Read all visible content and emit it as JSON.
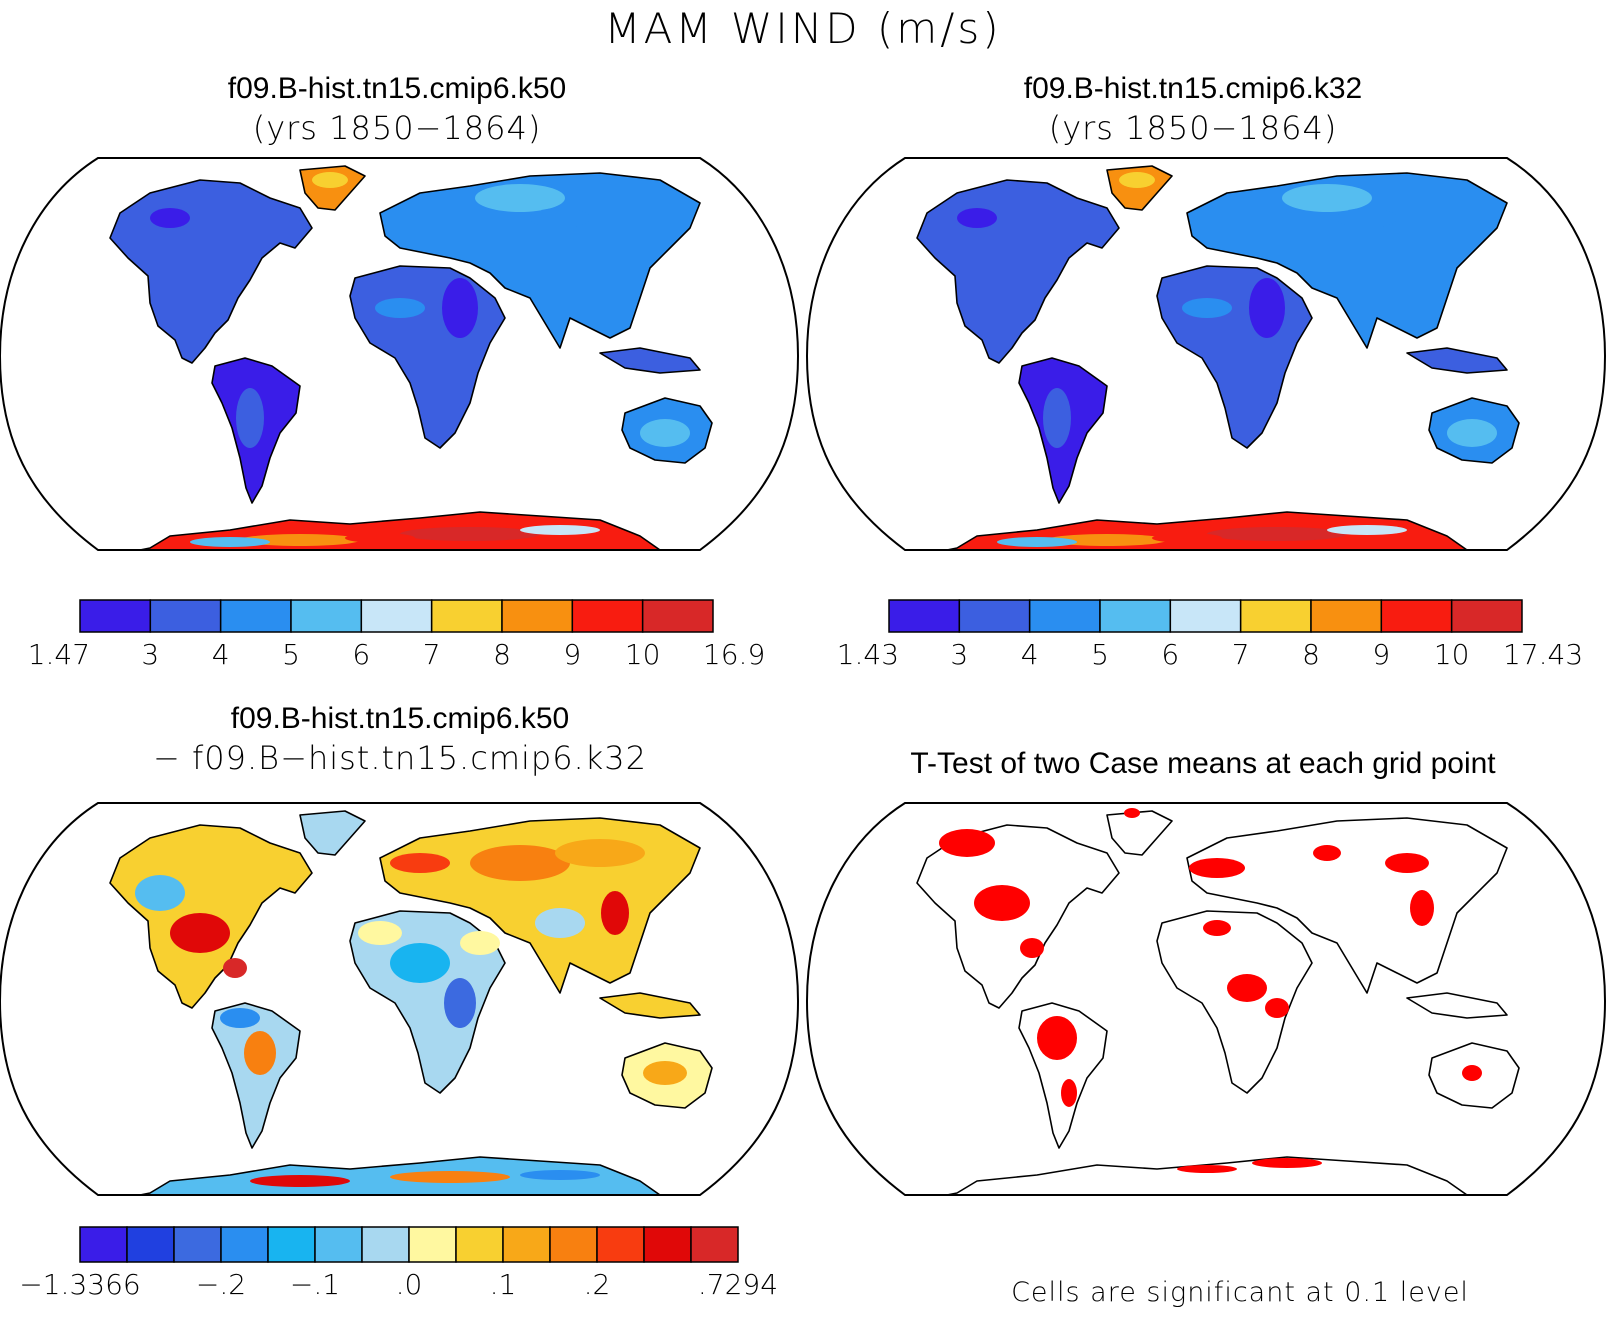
{
  "figure": {
    "title": "MAM WIND (m/s)"
  },
  "panels": {
    "case1": {
      "title_line1": "f09.B-hist.tn15.cmip6.k50",
      "title_line2": "(yrs 1850−1864)",
      "colorbar": {
        "labels": [
          "1.47",
          "3",
          "4",
          "5",
          "6",
          "7",
          "8",
          "9",
          "10",
          "16.9"
        ],
        "colors": [
          "#3a1de8",
          "#3c5fe0",
          "#2a8ef0",
          "#55bdf0",
          "#c8e6f8",
          "#f8d030",
          "#f89010",
          "#f81c10",
          "#d82828"
        ]
      }
    },
    "case2": {
      "title_line1": "f09.B-hist.tn15.cmip6.k32",
      "title_line2": "(yrs 1850−1864)",
      "colorbar": {
        "labels": [
          "1.43",
          "3",
          "4",
          "5",
          "6",
          "7",
          "8",
          "9",
          "10",
          "17.43"
        ],
        "colors": [
          "#3a1de8",
          "#3c5fe0",
          "#2a8ef0",
          "#55bdf0",
          "#c8e6f8",
          "#f8d030",
          "#f89010",
          "#f81c10",
          "#d82828"
        ]
      }
    },
    "difference": {
      "title_line1": "f09.B-hist.tn15.cmip6.k50",
      "title_line2": "− f09.B−hist.tn15.cmip6.k32",
      "colorbar": {
        "labels": [
          "−1.3366",
          "−.2",
          "−.1",
          ".0",
          ".1",
          ".2",
          ".7294"
        ],
        "colors": [
          "#3a1de8",
          "#2040e0",
          "#3c6ae0",
          "#2a8ef0",
          "#18b4f0",
          "#55bdf0",
          "#a8d8f0",
          "#fff8a0",
          "#f8d030",
          "#f8a818",
          "#f88010",
          "#f83c10",
          "#e00808",
          "#d82828"
        ]
      }
    },
    "ttest": {
      "title": "T-Test of two Case means at each grid point",
      "note": "Cells are significant at 0.1 level",
      "significance_color": "#ff0000"
    }
  }
}
